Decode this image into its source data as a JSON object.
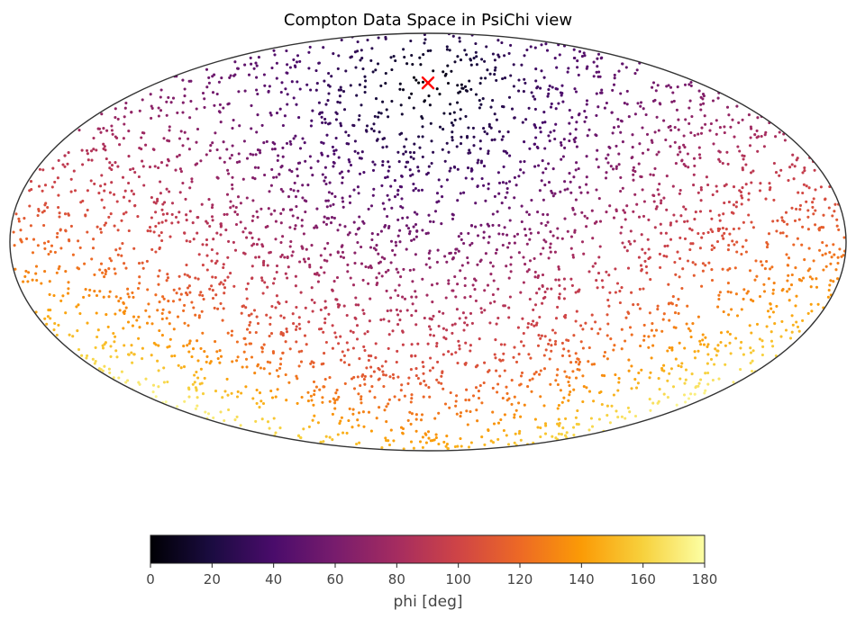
{
  "chart_data": {
    "type": "scatter",
    "title": "Compton Data Space in PsiChi view",
    "projection": "mollweide",
    "n_points": 3400,
    "sampling_seed": 7,
    "pole_direction": {
      "lon_deg": 0,
      "lat_deg": 60
    },
    "marker": {
      "lon_deg": 0,
      "lat_deg": 60,
      "symbol": "x",
      "color": "#ff0000"
    },
    "color_variable": "phi [deg]",
    "colorbar": {
      "label": "phi [deg]",
      "min": 0,
      "max": 180,
      "ticks": [
        0,
        20,
        40,
        60,
        80,
        100,
        120,
        140,
        160,
        180
      ],
      "colormap": "inferno",
      "colormap_stops": [
        "#000004",
        "#1b0c41",
        "#4a0c6b",
        "#781c6d",
        "#a52c60",
        "#cf4446",
        "#ed6925",
        "#fb9b06",
        "#f7d13d",
        "#fcffa4"
      ]
    },
    "background_color": "#ffffff",
    "frame_color": "#333333"
  }
}
